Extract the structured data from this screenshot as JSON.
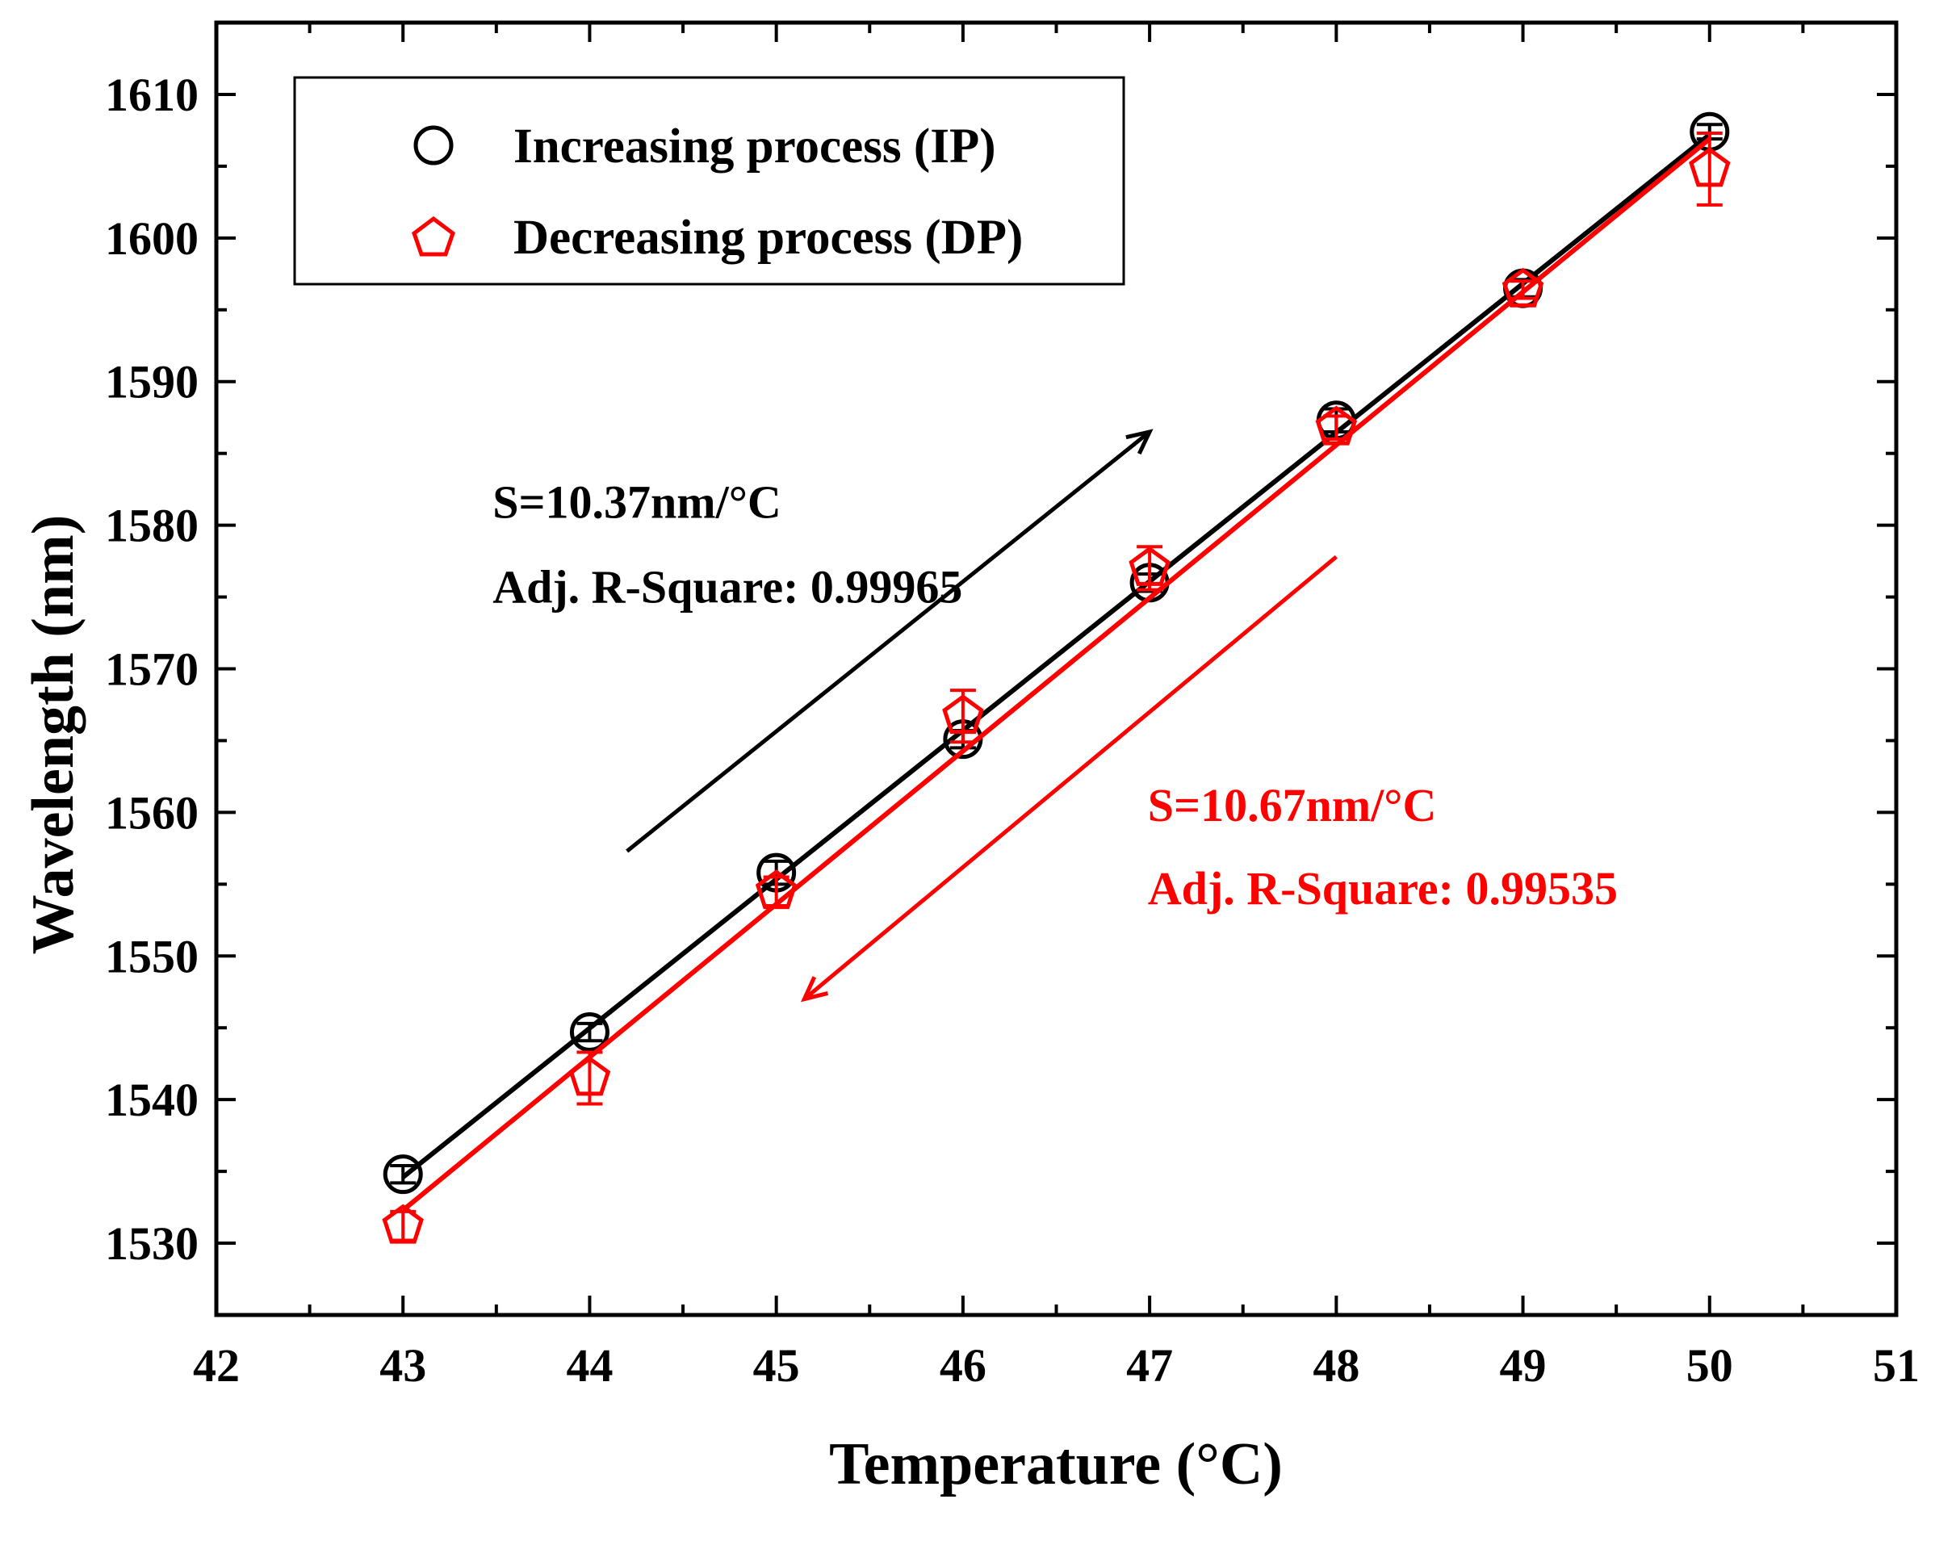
{
  "chart_data": {
    "type": "scatter",
    "title": "",
    "xlabel": "Temperature (°C)",
    "ylabel": "Wavelength (nm)",
    "xlim": [
      42,
      51
    ],
    "ylim": [
      1525,
      1615
    ],
    "xticks": [
      42,
      43,
      44,
      45,
      46,
      47,
      48,
      49,
      50,
      51
    ],
    "yticks": [
      1530,
      1540,
      1550,
      1560,
      1570,
      1580,
      1590,
      1600,
      1610
    ],
    "grid": false,
    "legend_position": "top-left",
    "series": [
      {
        "name": "Increasing process (IP)",
        "marker": "circle",
        "color": "#000000",
        "x": [
          43,
          44,
          45,
          46,
          47,
          48,
          49,
          50
        ],
        "y": [
          1534.8,
          1544.7,
          1555.8,
          1565.1,
          1576.0,
          1587.3,
          1596.5,
          1607.4
        ],
        "err": [
          0.6,
          0.6,
          0.8,
          0.6,
          0.6,
          0.8,
          0.6,
          0.5
        ],
        "fit": {
          "x": [
            43,
            50
          ],
          "y": [
            1534.6,
            1607.2
          ]
        }
      },
      {
        "name": "Decreasing process (DP)",
        "marker": "pentagon",
        "color": "#ff0000",
        "x": [
          43,
          44,
          45,
          46,
          47,
          48,
          49,
          50
        ],
        "y": [
          1531.2,
          1541.5,
          1554.5,
          1566.7,
          1577.0,
          1586.8,
          1596.4,
          1604.8
        ],
        "err": [
          1.0,
          1.8,
          1.0,
          1.8,
          1.5,
          0.8,
          0.6,
          2.5
        ],
        "fit": {
          "x": [
            43,
            50
          ],
          "y": [
            1532.3,
            1606.9
          ]
        }
      }
    ],
    "annotations": [
      {
        "text": "S=10.37nm/°C",
        "color": "#000000",
        "x": 43.48,
        "y": 1580.5
      },
      {
        "text": "Adj. R-Square: 0.99965",
        "color": "#000000",
        "x": 43.48,
        "y": 1574.6
      },
      {
        "text": "S=10.67nm/°C",
        "color": "#ff0000",
        "x": 46.99,
        "y": 1559.4
      },
      {
        "text": "Adj. R-Square: 0.99535",
        "color": "#ff0000",
        "x": 46.99,
        "y": 1553.6
      }
    ],
    "arrows": [
      {
        "color": "#000000",
        "from": [
          44.2,
          1557.3
        ],
        "to": [
          47.0,
          1586.5
        ]
      },
      {
        "color": "#ff0000",
        "from": [
          48.0,
          1577.8
        ],
        "to": [
          45.15,
          1547.0
        ]
      }
    ]
  }
}
